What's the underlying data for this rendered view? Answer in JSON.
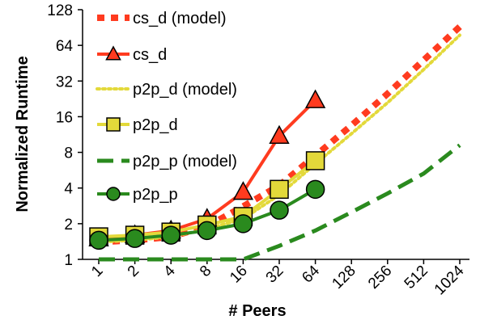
{
  "chart_data": {
    "type": "line",
    "xlabel": "# Peers",
    "ylabel": "Normalized Runtime",
    "x_scale": "log2",
    "y_scale": "log2",
    "x_ticks": [
      "1",
      "2",
      "4",
      "8",
      "16",
      "32",
      "64",
      "128",
      "256",
      "512",
      "1024"
    ],
    "y_ticks": [
      "1",
      "2",
      "4",
      "8",
      "16",
      "32",
      "64",
      "128"
    ],
    "ylim": [
      1,
      128
    ],
    "xlim": [
      1,
      1024
    ],
    "grid": false,
    "legend_position": "top-left",
    "series": [
      {
        "name": "cs_d (model)",
        "style": "dotted-thick",
        "color": "#ff3b1f",
        "marker": "none",
        "points": [
          [
            1,
            1.4
          ],
          [
            2,
            1.45
          ],
          [
            4,
            1.55
          ],
          [
            8,
            1.9
          ],
          [
            16,
            2.8
          ],
          [
            32,
            4.2
          ],
          [
            64,
            7.5
          ],
          [
            128,
            13.5
          ],
          [
            256,
            25
          ],
          [
            512,
            48
          ],
          [
            1024,
            92
          ]
        ]
      },
      {
        "name": "cs_d",
        "style": "solid",
        "color": "#ff3b1f",
        "marker": "triangle",
        "points": [
          [
            1,
            1.5
          ],
          [
            2,
            1.6
          ],
          [
            4,
            1.75
          ],
          [
            8,
            2.2
          ],
          [
            16,
            3.7
          ],
          [
            32,
            11
          ],
          [
            64,
            22
          ]
        ]
      },
      {
        "name": "p2p_d (model)",
        "style": "dotted",
        "color": "#e3d93a",
        "marker": "none",
        "points": [
          [
            1,
            1.4
          ],
          [
            2,
            1.45
          ],
          [
            4,
            1.55
          ],
          [
            8,
            1.8
          ],
          [
            16,
            2.2
          ],
          [
            32,
            3.5
          ],
          [
            64,
            6.4
          ],
          [
            128,
            11.5
          ],
          [
            256,
            21
          ],
          [
            512,
            40
          ],
          [
            1024,
            78
          ]
        ]
      },
      {
        "name": "p2p_d",
        "style": "solid",
        "color": "#e3d93a",
        "marker": "square",
        "points": [
          [
            1,
            1.55
          ],
          [
            2,
            1.6
          ],
          [
            4,
            1.7
          ],
          [
            8,
            1.95
          ],
          [
            16,
            2.3
          ],
          [
            32,
            3.9
          ],
          [
            64,
            6.8
          ]
        ]
      },
      {
        "name": "p2p_p (model)",
        "style": "dashed",
        "color": "#2a8a1e",
        "marker": "none",
        "points": [
          [
            1,
            1
          ],
          [
            2,
            1
          ],
          [
            4,
            1
          ],
          [
            8,
            1
          ],
          [
            16,
            1
          ],
          [
            32,
            1.3
          ],
          [
            64,
            1.75
          ],
          [
            128,
            2.5
          ],
          [
            256,
            3.6
          ],
          [
            512,
            5.3
          ],
          [
            1024,
            9.2
          ]
        ]
      },
      {
        "name": "p2p_p",
        "style": "solid",
        "color": "#2a8a1e",
        "marker": "circle",
        "points": [
          [
            1,
            1.45
          ],
          [
            2,
            1.5
          ],
          [
            4,
            1.6
          ],
          [
            8,
            1.75
          ],
          [
            16,
            2.0
          ],
          [
            32,
            2.6
          ],
          [
            64,
            3.9
          ]
        ]
      }
    ]
  }
}
